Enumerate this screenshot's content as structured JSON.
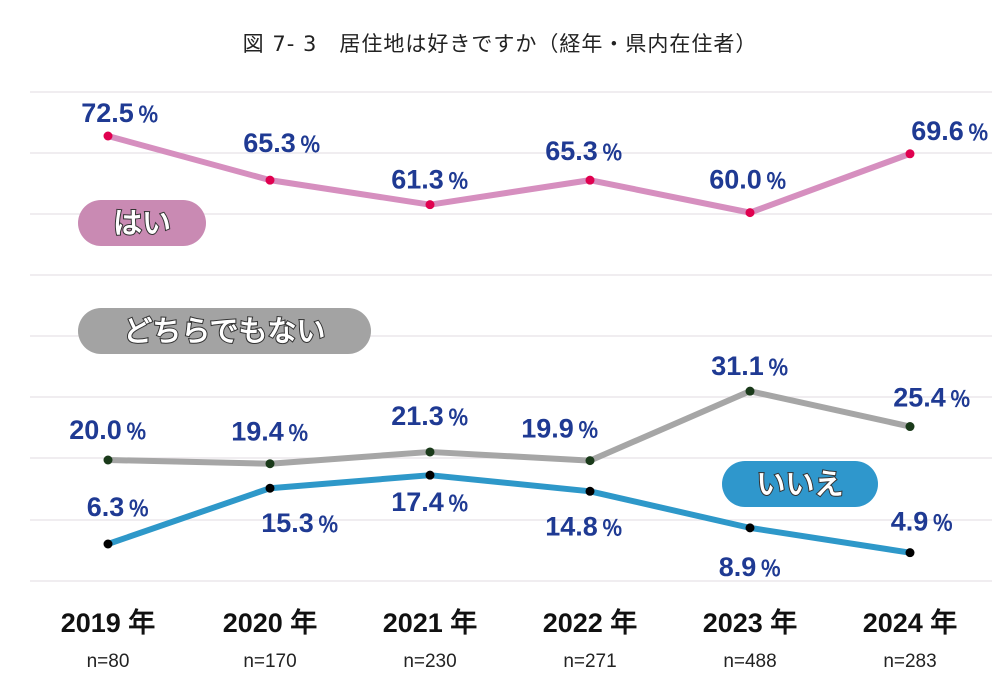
{
  "title": "図 7- 3　居住地は好きですか（経年・県内在住者）",
  "chart_data": {
    "type": "line",
    "categories": [
      "2019 年",
      "2020 年",
      "2021 年",
      "2022 年",
      "2023 年",
      "2024 年"
    ],
    "sample_sizes": [
      "n=80",
      "n=170",
      "n=230",
      "n=271",
      "n=488",
      "n=283"
    ],
    "unit": "％",
    "series": [
      {
        "name": "はい",
        "values": [
          72.5,
          65.3,
          61.3,
          65.3,
          60.0,
          69.6
        ],
        "color": "#d68fbf",
        "marker": "#e0004f"
      },
      {
        "name": "どちらでもない",
        "values": [
          20.0,
          19.4,
          21.3,
          19.9,
          31.1,
          25.4
        ],
        "color": "#a6a6a6",
        "marker": "#1a3a1a"
      },
      {
        "name": "いいえ",
        "values": [
          6.3,
          15.3,
          17.4,
          14.8,
          8.9,
          4.9
        ],
        "color": "#2e98c9",
        "marker": "#000000"
      }
    ],
    "grid": true
  }
}
